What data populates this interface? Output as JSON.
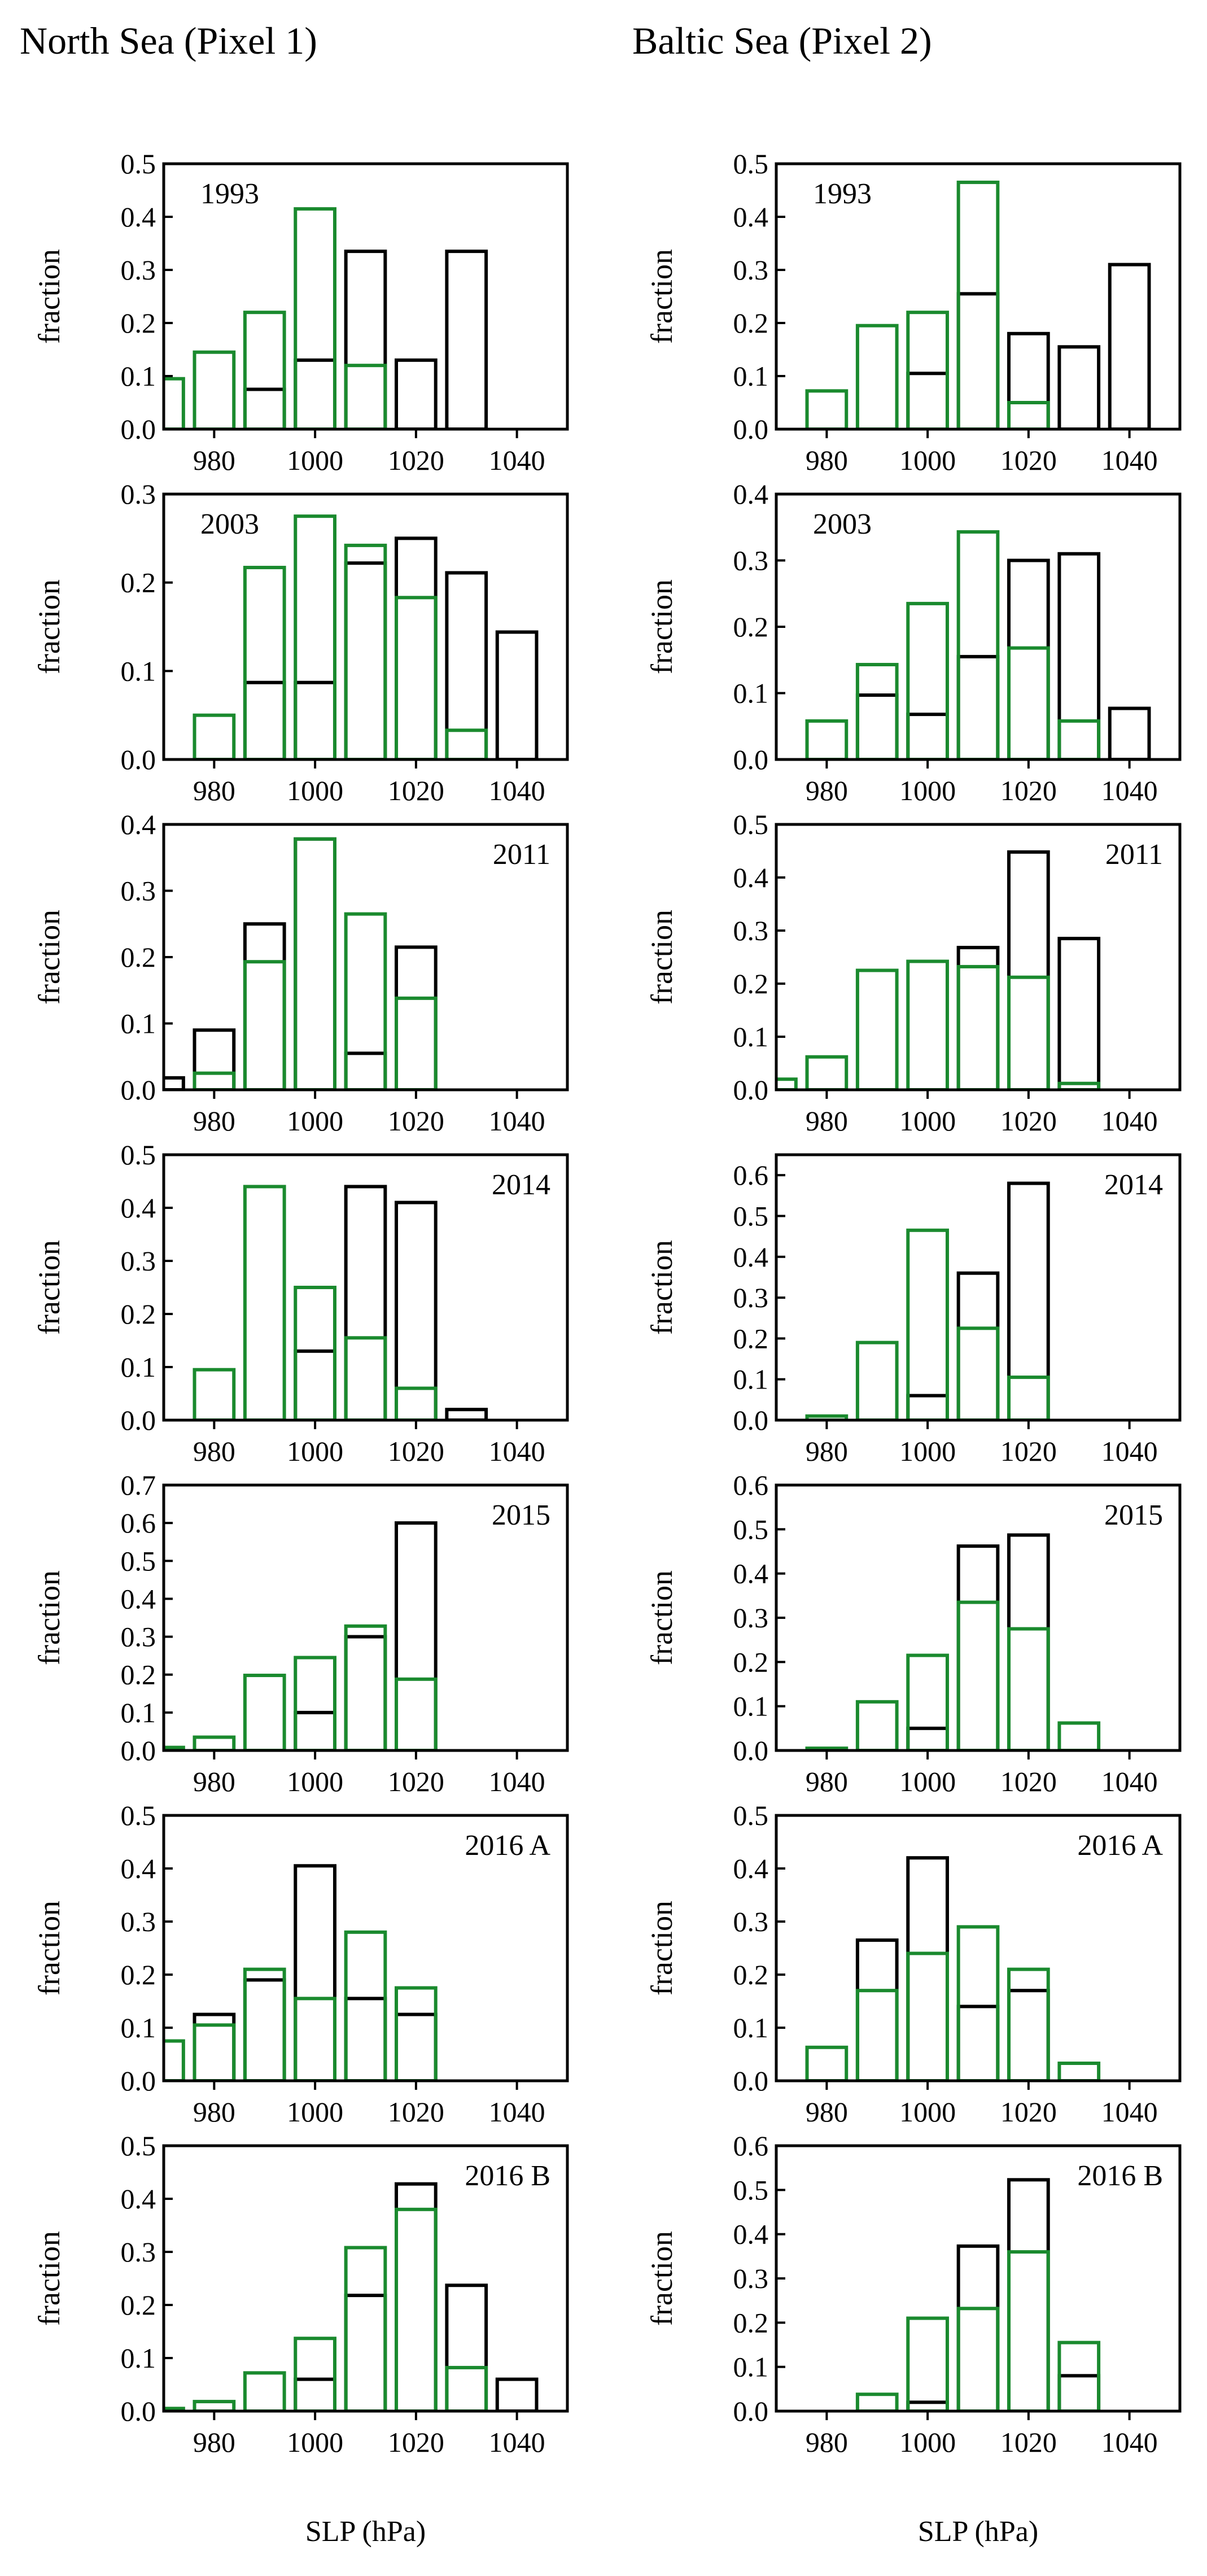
{
  "column_titles": [
    "North Sea (Pixel 1)",
    "Baltic Sea (Pixel 2)"
  ],
  "colors": {
    "black_series": "#000000",
    "green_series": "#1a8a2e"
  },
  "chart_data": [
    {
      "type": "bar",
      "panel": "North Sea (Pixel 1)",
      "label": "1993",
      "label_pos": "top-left",
      "ylabel": "fraction",
      "xlabel": "",
      "xlim": [
        970,
        1050
      ],
      "ylim": [
        0,
        0.5
      ],
      "yticks": [
        0.0,
        0.1,
        0.2,
        0.3,
        0.4,
        0.5
      ],
      "xticks": [
        980,
        1000,
        1020,
        1040
      ],
      "series": [
        {
          "name": "black",
          "color": "#000000",
          "x": [
            990,
            1000,
            1010,
            1020,
            1030
          ],
          "values": [
            0.075,
            0.13,
            0.335,
            0.13,
            0.335
          ]
        },
        {
          "name": "green",
          "color": "#1a8a2e",
          "x": [
            970,
            980,
            990,
            1000,
            1010
          ],
          "values": [
            0.095,
            0.145,
            0.22,
            0.415,
            0.12
          ]
        }
      ]
    },
    {
      "type": "bar",
      "panel": "Baltic Sea (Pixel 2)",
      "label": "1993",
      "label_pos": "top-left",
      "ylabel": "fraction",
      "xlabel": "",
      "xlim": [
        970,
        1050
      ],
      "ylim": [
        0,
        0.5
      ],
      "yticks": [
        0.0,
        0.1,
        0.2,
        0.3,
        0.4,
        0.5
      ],
      "xticks": [
        980,
        1000,
        1020,
        1040
      ],
      "series": [
        {
          "name": "black",
          "color": "#000000",
          "x": [
            1000,
            1010,
            1020,
            1030,
            1040
          ],
          "values": [
            0.105,
            0.255,
            0.18,
            0.155,
            0.31
          ]
        },
        {
          "name": "green",
          "color": "#1a8a2e",
          "x": [
            980,
            990,
            1000,
            1010,
            1020
          ],
          "values": [
            0.072,
            0.195,
            0.22,
            0.465,
            0.05
          ]
        }
      ]
    },
    {
      "type": "bar",
      "panel": "North Sea (Pixel 1)",
      "label": "2003",
      "label_pos": "top-left",
      "ylabel": "fraction",
      "xlabel": "",
      "xlim": [
        970,
        1050
      ],
      "ylim": [
        0,
        0.3
      ],
      "yticks": [
        0.0,
        0.1,
        0.2,
        0.3
      ],
      "xticks": [
        980,
        1000,
        1020,
        1040
      ],
      "series": [
        {
          "name": "black",
          "color": "#000000",
          "x": [
            990,
            1000,
            1010,
            1020,
            1030,
            1040
          ],
          "values": [
            0.087,
            0.087,
            0.222,
            0.25,
            0.211,
            0.144
          ]
        },
        {
          "name": "green",
          "color": "#1a8a2e",
          "x": [
            980,
            990,
            1000,
            1010,
            1020,
            1030
          ],
          "values": [
            0.05,
            0.217,
            0.275,
            0.242,
            0.183,
            0.033
          ]
        }
      ]
    },
    {
      "type": "bar",
      "panel": "Baltic Sea (Pixel 2)",
      "label": "2003",
      "label_pos": "top-left",
      "ylabel": "fraction",
      "xlabel": "",
      "xlim": [
        970,
        1050
      ],
      "ylim": [
        0,
        0.4
      ],
      "yticks": [
        0.0,
        0.1,
        0.2,
        0.3,
        0.4
      ],
      "xticks": [
        980,
        1000,
        1020,
        1040
      ],
      "series": [
        {
          "name": "black",
          "color": "#000000",
          "x": [
            990,
            1000,
            1010,
            1020,
            1030,
            1040
          ],
          "values": [
            0.097,
            0.068,
            0.155,
            0.3,
            0.31,
            0.077
          ]
        },
        {
          "name": "green",
          "color": "#1a8a2e",
          "x": [
            980,
            990,
            1000,
            1010,
            1020,
            1030
          ],
          "values": [
            0.058,
            0.143,
            0.235,
            0.343,
            0.168,
            0.058
          ]
        }
      ]
    },
    {
      "type": "bar",
      "panel": "North Sea (Pixel 1)",
      "label": "2011",
      "label_pos": "top-right",
      "ylabel": "fraction",
      "xlabel": "",
      "xlim": [
        970,
        1050
      ],
      "ylim": [
        0,
        0.4
      ],
      "yticks": [
        0.0,
        0.1,
        0.2,
        0.3,
        0.4
      ],
      "xticks": [
        980,
        1000,
        1020,
        1040
      ],
      "series": [
        {
          "name": "black",
          "color": "#000000",
          "x": [
            970,
            980,
            990,
            1000,
            1010,
            1020
          ],
          "values": [
            0.018,
            0.09,
            0.25,
            0.378,
            0.055,
            0.215
          ]
        },
        {
          "name": "green",
          "color": "#1a8a2e",
          "x": [
            980,
            990,
            1000,
            1010,
            1020
          ],
          "values": [
            0.025,
            0.193,
            0.378,
            0.265,
            0.138
          ]
        }
      ]
    },
    {
      "type": "bar",
      "panel": "Baltic Sea (Pixel 2)",
      "label": "2011",
      "label_pos": "top-right",
      "ylabel": "fraction",
      "xlabel": "",
      "xlim": [
        970,
        1050
      ],
      "ylim": [
        0,
        0.5
      ],
      "yticks": [
        0.0,
        0.1,
        0.2,
        0.3,
        0.4,
        0.5
      ],
      "xticks": [
        980,
        1000,
        1020,
        1040
      ],
      "series": [
        {
          "name": "black",
          "color": "#000000",
          "x": [
            1010,
            1020,
            1030
          ],
          "values": [
            0.268,
            0.448,
            0.285
          ]
        },
        {
          "name": "green",
          "color": "#1a8a2e",
          "x": [
            970,
            980,
            990,
            1000,
            1010,
            1020,
            1030
          ],
          "values": [
            0.02,
            0.062,
            0.225,
            0.242,
            0.232,
            0.212,
            0.012
          ]
        }
      ]
    },
    {
      "type": "bar",
      "panel": "North Sea (Pixel 1)",
      "label": "2014",
      "label_pos": "top-right",
      "ylabel": "fraction",
      "xlabel": "",
      "xlim": [
        970,
        1050
      ],
      "ylim": [
        0,
        0.5
      ],
      "yticks": [
        0.0,
        0.1,
        0.2,
        0.3,
        0.4,
        0.5
      ],
      "xticks": [
        980,
        1000,
        1020,
        1040
      ],
      "series": [
        {
          "name": "black",
          "color": "#000000",
          "x": [
            1000,
            1010,
            1020,
            1030
          ],
          "values": [
            0.13,
            0.44,
            0.41,
            0.02
          ]
        },
        {
          "name": "green",
          "color": "#1a8a2e",
          "x": [
            980,
            990,
            1000,
            1010,
            1020
          ],
          "values": [
            0.095,
            0.44,
            0.25,
            0.155,
            0.06
          ]
        }
      ]
    },
    {
      "type": "bar",
      "panel": "Baltic Sea (Pixel 2)",
      "label": "2014",
      "label_pos": "top-right",
      "ylabel": "fraction",
      "xlabel": "",
      "xlim": [
        970,
        1050
      ],
      "ylim": [
        0,
        0.65
      ],
      "yticks": [
        0.0,
        0.1,
        0.2,
        0.3,
        0.4,
        0.5,
        0.6
      ],
      "xticks": [
        980,
        1000,
        1020,
        1040
      ],
      "series": [
        {
          "name": "black",
          "color": "#000000",
          "x": [
            1000,
            1010,
            1020
          ],
          "values": [
            0.06,
            0.36,
            0.58
          ]
        },
        {
          "name": "green",
          "color": "#1a8a2e",
          "x": [
            980,
            990,
            1000,
            1010,
            1020
          ],
          "values": [
            0.01,
            0.19,
            0.465,
            0.225,
            0.105
          ]
        }
      ]
    },
    {
      "type": "bar",
      "panel": "North Sea (Pixel 1)",
      "label": "2015",
      "label_pos": "top-right",
      "ylabel": "fraction",
      "xlabel": "",
      "xlim": [
        970,
        1050
      ],
      "ylim": [
        0,
        0.7
      ],
      "yticks": [
        0.0,
        0.1,
        0.2,
        0.3,
        0.4,
        0.5,
        0.6,
        0.7
      ],
      "xticks": [
        980,
        1000,
        1020,
        1040
      ],
      "series": [
        {
          "name": "black",
          "color": "#000000",
          "x": [
            1000,
            1010,
            1020
          ],
          "values": [
            0.1,
            0.3,
            0.6
          ]
        },
        {
          "name": "green",
          "color": "#1a8a2e",
          "x": [
            970,
            980,
            990,
            1000,
            1010,
            1020
          ],
          "values": [
            0.008,
            0.035,
            0.198,
            0.245,
            0.328,
            0.188
          ]
        }
      ]
    },
    {
      "type": "bar",
      "panel": "Baltic Sea (Pixel 2)",
      "label": "2015",
      "label_pos": "top-right",
      "ylabel": "fraction",
      "xlabel": "",
      "xlim": [
        970,
        1050
      ],
      "ylim": [
        0,
        0.6
      ],
      "yticks": [
        0.0,
        0.1,
        0.2,
        0.3,
        0.4,
        0.5,
        0.6
      ],
      "xticks": [
        980,
        1000,
        1020,
        1040
      ],
      "series": [
        {
          "name": "black",
          "color": "#000000",
          "x": [
            1000,
            1010,
            1020
          ],
          "values": [
            0.05,
            0.462,
            0.487
          ]
        },
        {
          "name": "green",
          "color": "#1a8a2e",
          "x": [
            980,
            990,
            1000,
            1010,
            1020,
            1030
          ],
          "values": [
            0.005,
            0.11,
            0.215,
            0.335,
            0.275,
            0.062
          ]
        }
      ]
    },
    {
      "type": "bar",
      "panel": "North Sea (Pixel 1)",
      "label": "2016 A",
      "label_pos": "top-right",
      "ylabel": "fraction",
      "xlabel": "",
      "xlim": [
        970,
        1050
      ],
      "ylim": [
        0,
        0.5
      ],
      "yticks": [
        0.0,
        0.1,
        0.2,
        0.3,
        0.4,
        0.5
      ],
      "xticks": [
        980,
        1000,
        1020,
        1040
      ],
      "series": [
        {
          "name": "black",
          "color": "#000000",
          "x": [
            980,
            990,
            1000,
            1010,
            1020
          ],
          "values": [
            0.125,
            0.19,
            0.405,
            0.155,
            0.125
          ]
        },
        {
          "name": "green",
          "color": "#1a8a2e",
          "x": [
            970,
            980,
            990,
            1000,
            1010,
            1020
          ],
          "values": [
            0.075,
            0.105,
            0.21,
            0.155,
            0.28,
            0.175
          ]
        }
      ]
    },
    {
      "type": "bar",
      "panel": "Baltic Sea (Pixel 2)",
      "label": "2016 A",
      "label_pos": "top-right",
      "ylabel": "fraction",
      "xlabel": "",
      "xlim": [
        970,
        1050
      ],
      "ylim": [
        0,
        0.5
      ],
      "yticks": [
        0.0,
        0.1,
        0.2,
        0.3,
        0.4,
        0.5
      ],
      "xticks": [
        980,
        1000,
        1020,
        1040
      ],
      "series": [
        {
          "name": "black",
          "color": "#000000",
          "x": [
            990,
            1000,
            1010,
            1020
          ],
          "values": [
            0.265,
            0.42,
            0.14,
            0.17
          ]
        },
        {
          "name": "green",
          "color": "#1a8a2e",
          "x": [
            980,
            990,
            1000,
            1010,
            1020,
            1030
          ],
          "values": [
            0.063,
            0.17,
            0.24,
            0.29,
            0.21,
            0.033
          ]
        }
      ]
    },
    {
      "type": "bar",
      "panel": "North Sea (Pixel 1)",
      "label": "2016 B",
      "label_pos": "top-right",
      "ylabel": "fraction",
      "xlabel": "SLP (hPa)",
      "xlim": [
        970,
        1050
      ],
      "ylim": [
        0,
        0.5
      ],
      "yticks": [
        0.0,
        0.1,
        0.2,
        0.3,
        0.4,
        0.5
      ],
      "xticks": [
        980,
        1000,
        1020,
        1040
      ],
      "series": [
        {
          "name": "black",
          "color": "#000000",
          "x": [
            1000,
            1010,
            1020,
            1030,
            1040
          ],
          "values": [
            0.06,
            0.218,
            0.428,
            0.237,
            0.06
          ]
        },
        {
          "name": "green",
          "color": "#1a8a2e",
          "x": [
            970,
            980,
            990,
            1000,
            1010,
            1020,
            1030
          ],
          "values": [
            0.005,
            0.018,
            0.072,
            0.137,
            0.308,
            0.38,
            0.082
          ]
        }
      ]
    },
    {
      "type": "bar",
      "panel": "Baltic Sea (Pixel 2)",
      "label": "2016 B",
      "label_pos": "top-right",
      "ylabel": "fraction",
      "xlabel": "SLP (hPa)",
      "xlim": [
        970,
        1050
      ],
      "ylim": [
        0,
        0.6
      ],
      "yticks": [
        0.0,
        0.1,
        0.2,
        0.3,
        0.4,
        0.5,
        0.6
      ],
      "xticks": [
        980,
        1000,
        1020,
        1040
      ],
      "series": [
        {
          "name": "black",
          "color": "#000000",
          "x": [
            1000,
            1010,
            1020,
            1030
          ],
          "values": [
            0.02,
            0.373,
            0.523,
            0.08
          ]
        },
        {
          "name": "green",
          "color": "#1a8a2e",
          "x": [
            990,
            1000,
            1010,
            1020,
            1030
          ],
          "values": [
            0.038,
            0.21,
            0.232,
            0.36,
            0.155
          ]
        }
      ]
    }
  ]
}
